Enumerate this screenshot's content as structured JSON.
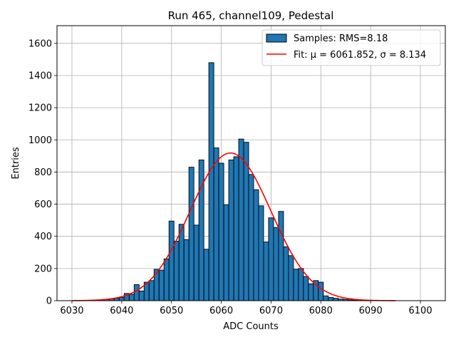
{
  "chart_data": {
    "type": "bar",
    "title": "Run 465, channel109, Pedestal",
    "xlabel": "ADC Counts",
    "ylabel": "Entries",
    "xlim": [
      6027,
      6105
    ],
    "ylim": [
      0,
      1710
    ],
    "xticks": [
      6030,
      6040,
      6050,
      6060,
      6070,
      6080,
      6090,
      6100
    ],
    "yticks": [
      0,
      200,
      400,
      600,
      800,
      1000,
      1200,
      1400,
      1600
    ],
    "grid": true,
    "legend_position": "top-right",
    "bin_width": 1,
    "series": [
      {
        "name": "Samples: RMS=8.18",
        "kind": "histogram",
        "color": "#1f77b4",
        "edge_color": "#000000",
        "x": [
          6035,
          6036,
          6037,
          6038,
          6039,
          6040,
          6041,
          6042,
          6043,
          6044,
          6045,
          6046,
          6047,
          6048,
          6049,
          6050,
          6051,
          6052,
          6053,
          6054,
          6055,
          6056,
          6057,
          6058,
          6059,
          6060,
          6061,
          6062,
          6063,
          6064,
          6065,
          6066,
          6067,
          6068,
          6069,
          6070,
          6071,
          6072,
          6073,
          6074,
          6075,
          6076,
          6077,
          6078,
          6079,
          6080,
          6081,
          6082,
          6083,
          6084,
          6085,
          6086,
          6087,
          6088
        ],
        "values": [
          3,
          5,
          8,
          12,
          15,
          20,
          45,
          40,
          100,
          60,
          115,
          125,
          195,
          190,
          260,
          495,
          370,
          475,
          380,
          830,
          470,
          875,
          320,
          1480,
          950,
          855,
          595,
          875,
          895,
          1005,
          985,
          785,
          690,
          590,
          365,
          515,
          455,
          555,
          335,
          280,
          195,
          200,
          150,
          105,
          125,
          115,
          30,
          20,
          15,
          10,
          8,
          5,
          3,
          2
        ]
      },
      {
        "name": "Fit: μ = 6061.852, σ = 8.134",
        "kind": "gaussian-fit",
        "color": "#ff0000",
        "mu": 6061.852,
        "sigma": 8.134,
        "amplitude": 918,
        "x_range": [
          6030,
          6095
        ]
      }
    ]
  }
}
